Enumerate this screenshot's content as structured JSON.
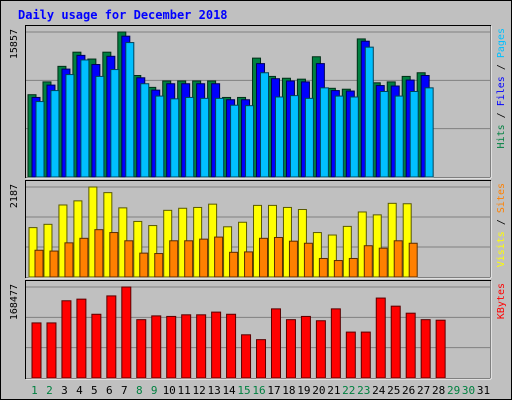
{
  "chart_data": {
    "type": "bar",
    "title": "Daily usage for December 2018",
    "categories": [
      "1",
      "2",
      "3",
      "4",
      "5",
      "6",
      "7",
      "8",
      "9",
      "10",
      "11",
      "12",
      "13",
      "14",
      "15",
      "16",
      "17",
      "18",
      "19",
      "20",
      "21",
      "22",
      "23",
      "24",
      "25",
      "26",
      "27",
      "28",
      "29",
      "30",
      "31"
    ],
    "weekend_days": [
      "1",
      "2",
      "8",
      "9",
      "15",
      "16",
      "22",
      "23",
      "29",
      "30"
    ],
    "panels": [
      {
        "id": "top",
        "max_label": "15857",
        "ymax": 15857,
        "axis_label_parts": [
          "Pages",
          "Files",
          "Hits"
        ],
        "axis_label_separator": " / ",
        "series": [
          {
            "name": "Hits",
            "color": "#008040",
            "values": [
              9000,
              10400,
              12100,
              13650,
              12900,
              13650,
              15857,
              11100,
              9800,
              10500,
              10500,
              10500,
              10500,
              8700,
              8700,
              13000,
              11000,
              10800,
              10700,
              13150,
              9700,
              9600,
              15100,
              10300,
              10400,
              11000,
              11400,
              0,
              0,
              0,
              0
            ]
          },
          {
            "name": "Files",
            "color": "#0000ff",
            "values": [
              8700,
              10050,
              11800,
              13300,
              12300,
              13200,
              15400,
              10850,
              9500,
              10200,
              10200,
              10200,
              10200,
              8450,
              8450,
              12400,
              10750,
              10500,
              10400,
              12400,
              9450,
              9400,
              14850,
              10000,
              9950,
              10600,
              11100,
              0,
              0,
              0,
              0
            ]
          },
          {
            "name": "Pages",
            "color": "#00c0ff",
            "values": [
              8250,
              9450,
              11200,
              12800,
              11000,
              11750,
              14700,
              10200,
              8850,
              8550,
              8700,
              8600,
              8600,
              7850,
              7800,
              11400,
              8750,
              8900,
              8600,
              9750,
              8850,
              8750,
              14200,
              9350,
              8850,
              9350,
              9750,
              0,
              0,
              0,
              0
            ]
          }
        ]
      },
      {
        "id": "middle",
        "max_label": "2187",
        "ymax": 2187,
        "axis_label_parts": [
          "Sites",
          "Visits"
        ],
        "axis_label_separator": " / ",
        "series": [
          {
            "name": "Visits",
            "color": "#ffff00",
            "values": [
              1200,
              1280,
              1750,
              1850,
              2187,
              2050,
              1680,
              1350,
              1250,
              1620,
              1670,
              1690,
              1770,
              1220,
              1330,
              1740,
              1740,
              1690,
              1640,
              1080,
              1020,
              1230,
              1580,
              1510,
              1790,
              1780,
              0,
              0,
              0,
              0,
              0
            ]
          },
          {
            "name": "Sites",
            "color": "#ff8000",
            "values": [
              650,
              630,
              830,
              940,
              1150,
              1080,
              880,
              580,
              570,
              880,
              880,
              920,
              970,
              600,
              610,
              940,
              960,
              870,
              820,
              450,
              400,
              450,
              760,
              700,
              880,
              820,
              0,
              0,
              0,
              0,
              0
            ]
          }
        ]
      },
      {
        "id": "bottom",
        "max_label": "168477",
        "ymax": 168477,
        "axis_label_parts": [
          "KBytes"
        ],
        "axis_label_separator": "",
        "series": [
          {
            "name": "KBytes",
            "color": "#ff0000",
            "values": [
              102000,
              102000,
              143000,
              146000,
              118000,
              152000,
              168477,
              108000,
              115000,
              114000,
              117000,
              117000,
              122000,
              118000,
              80000,
              71000,
              128000,
              108000,
              114000,
              106000,
              128000,
              85000,
              85000,
              148000,
              133000,
              120000,
              108000,
              107000,
              0,
              0,
              0
            ]
          }
        ]
      }
    ],
    "colors": {
      "background": "#c0c0c0",
      "title": "#0000ff",
      "weekday_label": "#000000",
      "weekend_label": "#008040",
      "grid": "#808080"
    }
  }
}
